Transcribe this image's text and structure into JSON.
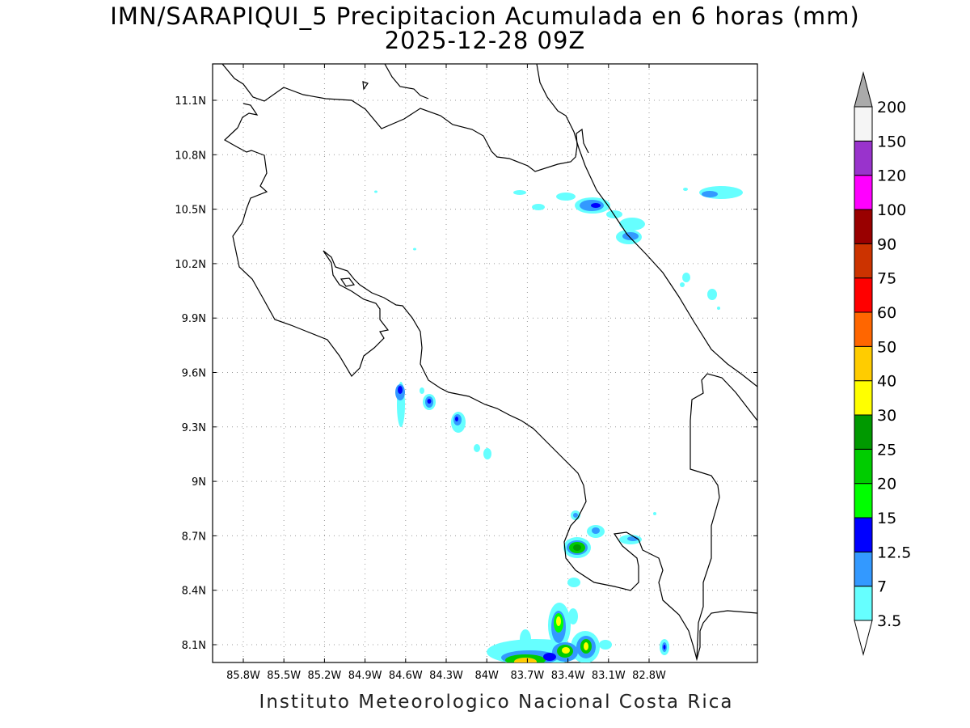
{
  "title_line1": "IMN/SARAPIQUI_5 Precipitacion Acumulada en 6 horas (mm)",
  "title_line2": "2025-12-28 09Z",
  "footer": "Instituto Meteorologico Nacional Costa Rica",
  "map": {
    "lat_labels": [
      "11.1N",
      "10.8N",
      "10.5N",
      "10.2N",
      "9.9N",
      "9.6N",
      "9.3N",
      "9N",
      "8.7N",
      "8.4N",
      "8.1N"
    ],
    "lon_labels": [
      "85.8W",
      "85.5W",
      "85.2W",
      "84.9W",
      "84.6W",
      "84.3W",
      "84W",
      "83.7W",
      "83.4W",
      "83.1W",
      "82.8W"
    ],
    "gridlines": "dotted"
  },
  "colorbar": {
    "levels": [
      "3.5",
      "7",
      "12.5",
      "15",
      "20",
      "25",
      "30",
      "40",
      "50",
      "60",
      "75",
      "90",
      "100",
      "120",
      "150",
      "200"
    ],
    "colors": [
      "#66ffff",
      "#3399ff",
      "#0000ff",
      "#00ff00",
      "#00cc00",
      "#009900",
      "#ffff00",
      "#ffcc00",
      "#ff6600",
      "#ff0000",
      "#cc3300",
      "#990000",
      "#ff00ff",
      "#9933cc",
      "#f5f5f5",
      "#aaaaaa"
    ]
  }
}
